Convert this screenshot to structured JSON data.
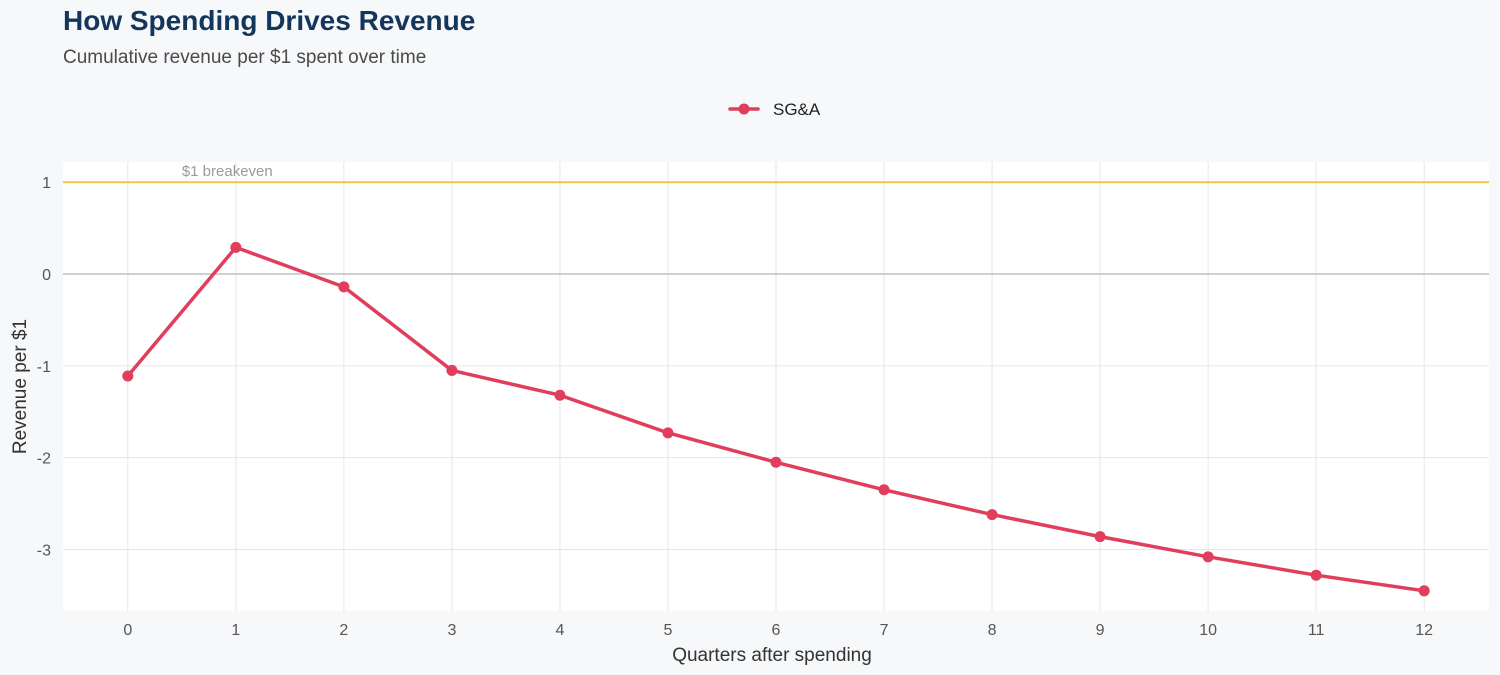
{
  "chart_data": {
    "type": "line",
    "title": "How Spending Drives Revenue",
    "subtitle": "Cumulative revenue per $1 spent over time",
    "xlabel": "Quarters after spending",
    "ylabel": "Revenue per $1",
    "x": [
      0,
      1,
      2,
      3,
      4,
      5,
      6,
      7,
      8,
      9,
      10,
      11,
      12
    ],
    "xlim": [
      -0.6,
      12.6
    ],
    "ylim": [
      -3.67,
      1.22
    ],
    "y_ticks": [
      1,
      0,
      -1,
      -2,
      -3
    ],
    "y_tick_labels": [
      "1",
      "0",
      "-1",
      "-2",
      "-3"
    ],
    "x_tick_labels": [
      "0",
      "1",
      "2",
      "3",
      "4",
      "5",
      "6",
      "7",
      "8",
      "9",
      "10",
      "11",
      "12"
    ],
    "grid": true,
    "legend_position": "top",
    "series": [
      {
        "name": "SG&A",
        "color": "#e03e5c",
        "values": [
          -1.11,
          0.29,
          -0.14,
          -1.05,
          -1.32,
          -1.73,
          -2.05,
          -2.35,
          -2.62,
          -2.86,
          -3.08,
          -3.28,
          -3.45
        ]
      }
    ],
    "reference_lines": [
      {
        "y": 1,
        "label": "$1 breakeven",
        "color": "#f2c94c"
      }
    ],
    "zero_line_color": "#c8c8c8"
  }
}
